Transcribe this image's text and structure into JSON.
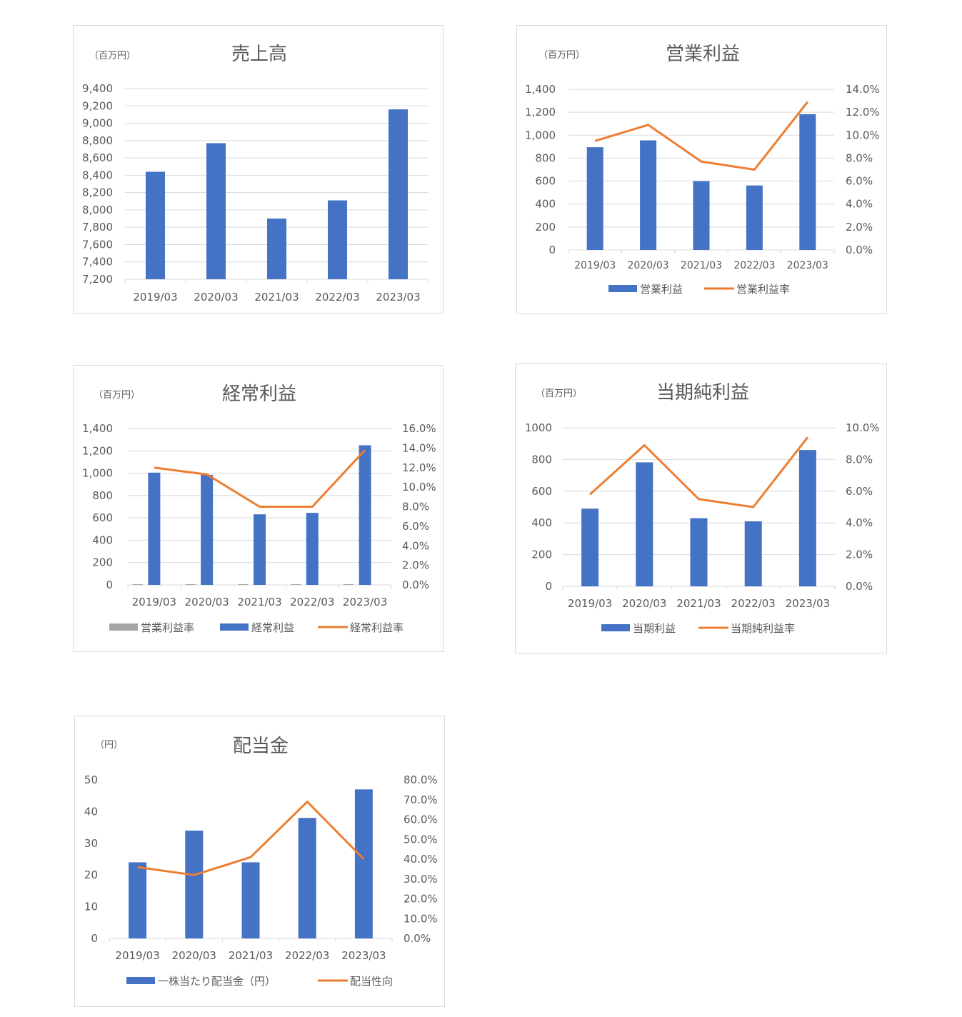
{
  "colors": {
    "bar": "#4472c4",
    "line": "#ed7d31",
    "gray": "#a5a5a5",
    "grid": "#d9d9d9",
    "text": "#595959"
  },
  "chart_data": [
    {
      "type": "bar",
      "title": "売上高",
      "unit": "（百万円）",
      "categories": [
        "2019/03",
        "2020/03",
        "2021/03",
        "2022/03",
        "2023/03"
      ],
      "ylim": [
        7200,
        9400
      ],
      "yticks": [
        "7,200",
        "7,400",
        "7,600",
        "7,800",
        "8,000",
        "8,200",
        "8,400",
        "8,600",
        "8,800",
        "9,000",
        "9,200",
        "9,400"
      ],
      "series": [
        {
          "values": [
            8440,
            8770,
            7900,
            8110,
            9160
          ]
        }
      ],
      "grid": true
    },
    {
      "type": "bar+line",
      "title": "営業利益",
      "unit": "（百万円）",
      "categories": [
        "2019/03",
        "2020/03",
        "2021/03",
        "2022/03",
        "2023/03"
      ],
      "ylim": [
        0,
        1400
      ],
      "yticks": [
        "0",
        "200",
        "400",
        "600",
        "800",
        "1,000",
        "1,200",
        "1,400"
      ],
      "y2lim": [
        0,
        0.14
      ],
      "y2ticks": [
        "0.0%",
        "2.0%",
        "4.0%",
        "6.0%",
        "8.0%",
        "10.0%",
        "12.0%",
        "14.0%"
      ],
      "series": [
        {
          "name": "営業利益",
          "kind": "bar",
          "values": [
            895,
            955,
            600,
            562,
            1183
          ]
        },
        {
          "name": "営業利益率",
          "kind": "line",
          "axis": "right",
          "values": [
            0.095,
            0.109,
            0.077,
            0.07,
            0.129
          ]
        }
      ],
      "legend": "bottom",
      "grid": true
    },
    {
      "type": "bar+line",
      "title": "経常利益",
      "unit": "（百万円）",
      "categories": [
        "2019/03",
        "2020/03",
        "2021/03",
        "2022/03",
        "2023/03"
      ],
      "ylim": [
        0,
        1400
      ],
      "yticks": [
        "0",
        "200",
        "400",
        "600",
        "800",
        "1,000",
        "1,200",
        "1,400"
      ],
      "y2lim": [
        0,
        0.16
      ],
      "y2ticks": [
        "0.0%",
        "2.0%",
        "4.0%",
        "6.0%",
        "8.0%",
        "10.0%",
        "12.0%",
        "14.0%",
        "16.0%"
      ],
      "series": [
        {
          "name": "営業利益率",
          "kind": "bar",
          "color": "gray",
          "values": [
            0.095,
            0.109,
            0.077,
            0.07,
            0.129
          ]
        },
        {
          "name": "経常利益",
          "kind": "bar",
          "values": [
            1005,
            985,
            632,
            645,
            1250
          ]
        },
        {
          "name": "経常利益率",
          "kind": "line",
          "axis": "right",
          "values": [
            0.12,
            0.113,
            0.08,
            0.08,
            0.138
          ]
        }
      ],
      "legend": "bottom",
      "grid": true
    },
    {
      "type": "bar+line",
      "title": "当期純利益",
      "unit": "（百万円）",
      "categories": [
        "2019/03",
        "2020/03",
        "2021/03",
        "2022/03",
        "2023/03"
      ],
      "ylim": [
        0,
        1000
      ],
      "yticks": [
        "0",
        "200",
        "400",
        "600",
        "800",
        "1000"
      ],
      "y2lim": [
        0,
        0.1
      ],
      "y2ticks": [
        "0.0%",
        "2.0%",
        "4.0%",
        "6.0%",
        "8.0%",
        "10.0%"
      ],
      "series": [
        {
          "name": "当期利益",
          "kind": "bar",
          "values": [
            490,
            782,
            430,
            410,
            860
          ]
        },
        {
          "name": "当期純利益率",
          "kind": "line",
          "axis": "right",
          "values": [
            0.058,
            0.089,
            0.055,
            0.05,
            0.094
          ]
        }
      ],
      "legend": "bottom",
      "grid": true
    },
    {
      "type": "bar+line",
      "title": "配当金",
      "unit": "（円）",
      "categories": [
        "2019/03",
        "2020/03",
        "2021/03",
        "2022/03",
        "2023/03"
      ],
      "ylim": [
        0,
        50
      ],
      "yticks": [
        "0",
        "10",
        "20",
        "30",
        "40",
        "50"
      ],
      "y2lim": [
        0,
        0.8
      ],
      "y2ticks": [
        "0.0%",
        "10.0%",
        "20.0%",
        "30.0%",
        "40.0%",
        "50.0%",
        "60.0%",
        "70.0%",
        "80.0%"
      ],
      "series": [
        {
          "name": "一株当たり配当金（円）",
          "kind": "bar",
          "values": [
            24,
            34,
            24,
            38,
            47
          ]
        },
        {
          "name": "配当性向",
          "kind": "line",
          "axis": "right",
          "values": [
            0.36,
            0.32,
            0.41,
            0.69,
            0.4
          ]
        }
      ],
      "legend": "bottom",
      "grid": false
    }
  ]
}
